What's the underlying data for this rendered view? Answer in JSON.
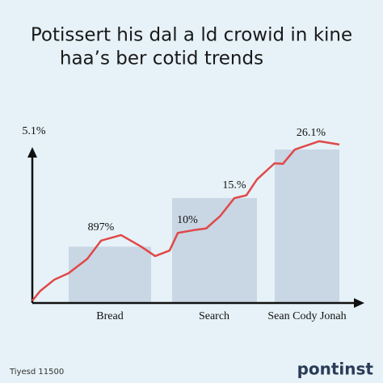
{
  "chart_data": {
    "type": "line",
    "title": [
      "Potissert his dal a ld crowid in kine",
      "haa’s ber cotid trends"
    ],
    "y_label": "5.1%",
    "xlim": [
      0,
      100
    ],
    "ylim": [
      0,
      30
    ],
    "series": [
      {
        "color": "#e04848",
        "x": [
          0,
          2.6,
          7.1,
          11.8,
          17.9,
          22.4,
          28.9,
          35.5,
          40.0,
          44.7,
          47.4,
          52.6,
          56.6,
          61.1,
          65.8,
          69.7,
          73.2,
          78.9,
          81.6,
          85.5,
          93.4,
          100
        ],
        "values": [
          0.4,
          2.2,
          4.2,
          5.4,
          8.0,
          11.3,
          12.3,
          10.2,
          8.5,
          9.5,
          12.7,
          13.2,
          13.5,
          15.7,
          19.0,
          19.5,
          22.4,
          25.3,
          25.2,
          27.8,
          29.3,
          28.7
        ]
      }
    ],
    "bars": {
      "color": "#c9d6e4",
      "categories": [
        "Bread",
        "Search",
        "Sean Cody Jonah"
      ],
      "values": [
        10.2,
        19.0,
        27.8
      ]
    },
    "annotations": [
      "897%",
      "10%",
      "15.%",
      "26.1%"
    ],
    "footer": "Tiyesd 11500",
    "brand": "pontinst"
  }
}
